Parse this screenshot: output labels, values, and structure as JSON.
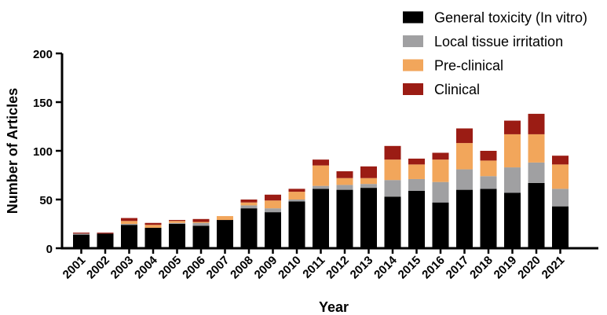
{
  "chart_data": {
    "type": "bar",
    "stacked": true,
    "categories": [
      "2001",
      "2002",
      "2003",
      "2004",
      "2005",
      "2006",
      "2007",
      "2008",
      "2009",
      "2010",
      "2011",
      "2012",
      "2013",
      "2014",
      "2015",
      "2016",
      "2017",
      "2018",
      "2019",
      "2020",
      "2021"
    ],
    "series": [
      {
        "name": "General toxicity (In vitro)",
        "color": "#000000",
        "values": [
          14,
          15,
          24,
          21,
          25,
          23,
          29,
          41,
          37,
          48,
          61,
          60,
          62,
          53,
          59,
          47,
          60,
          61,
          57,
          67,
          43
        ]
      },
      {
        "name": "Local tissue irritation",
        "color": "#a0a0a2",
        "values": [
          1,
          0,
          1,
          0,
          1,
          3,
          0,
          3,
          4,
          2,
          3,
          5,
          4,
          17,
          12,
          21,
          21,
          13,
          26,
          21,
          18
        ]
      },
      {
        "name": "Pre-clinical",
        "color": "#f2a65b",
        "values": [
          0,
          0,
          3,
          3,
          2,
          1,
          4,
          3,
          8,
          8,
          21,
          7,
          6,
          21,
          15,
          23,
          27,
          16,
          34,
          29,
          25
        ]
      },
      {
        "name": "Clinical",
        "color": "#9b1c14",
        "values": [
          1,
          1,
          3,
          2,
          1,
          3,
          0,
          3,
          6,
          3,
          6,
          7,
          12,
          14,
          6,
          7,
          15,
          10,
          14,
          21,
          9
        ]
      }
    ],
    "xlabel": "Year",
    "ylabel": "Number of Articles",
    "ylim": [
      0,
      200
    ],
    "yticks": [
      "0",
      "50",
      "100",
      "150",
      "200"
    ],
    "grid": false,
    "legend_position": "top-right"
  }
}
